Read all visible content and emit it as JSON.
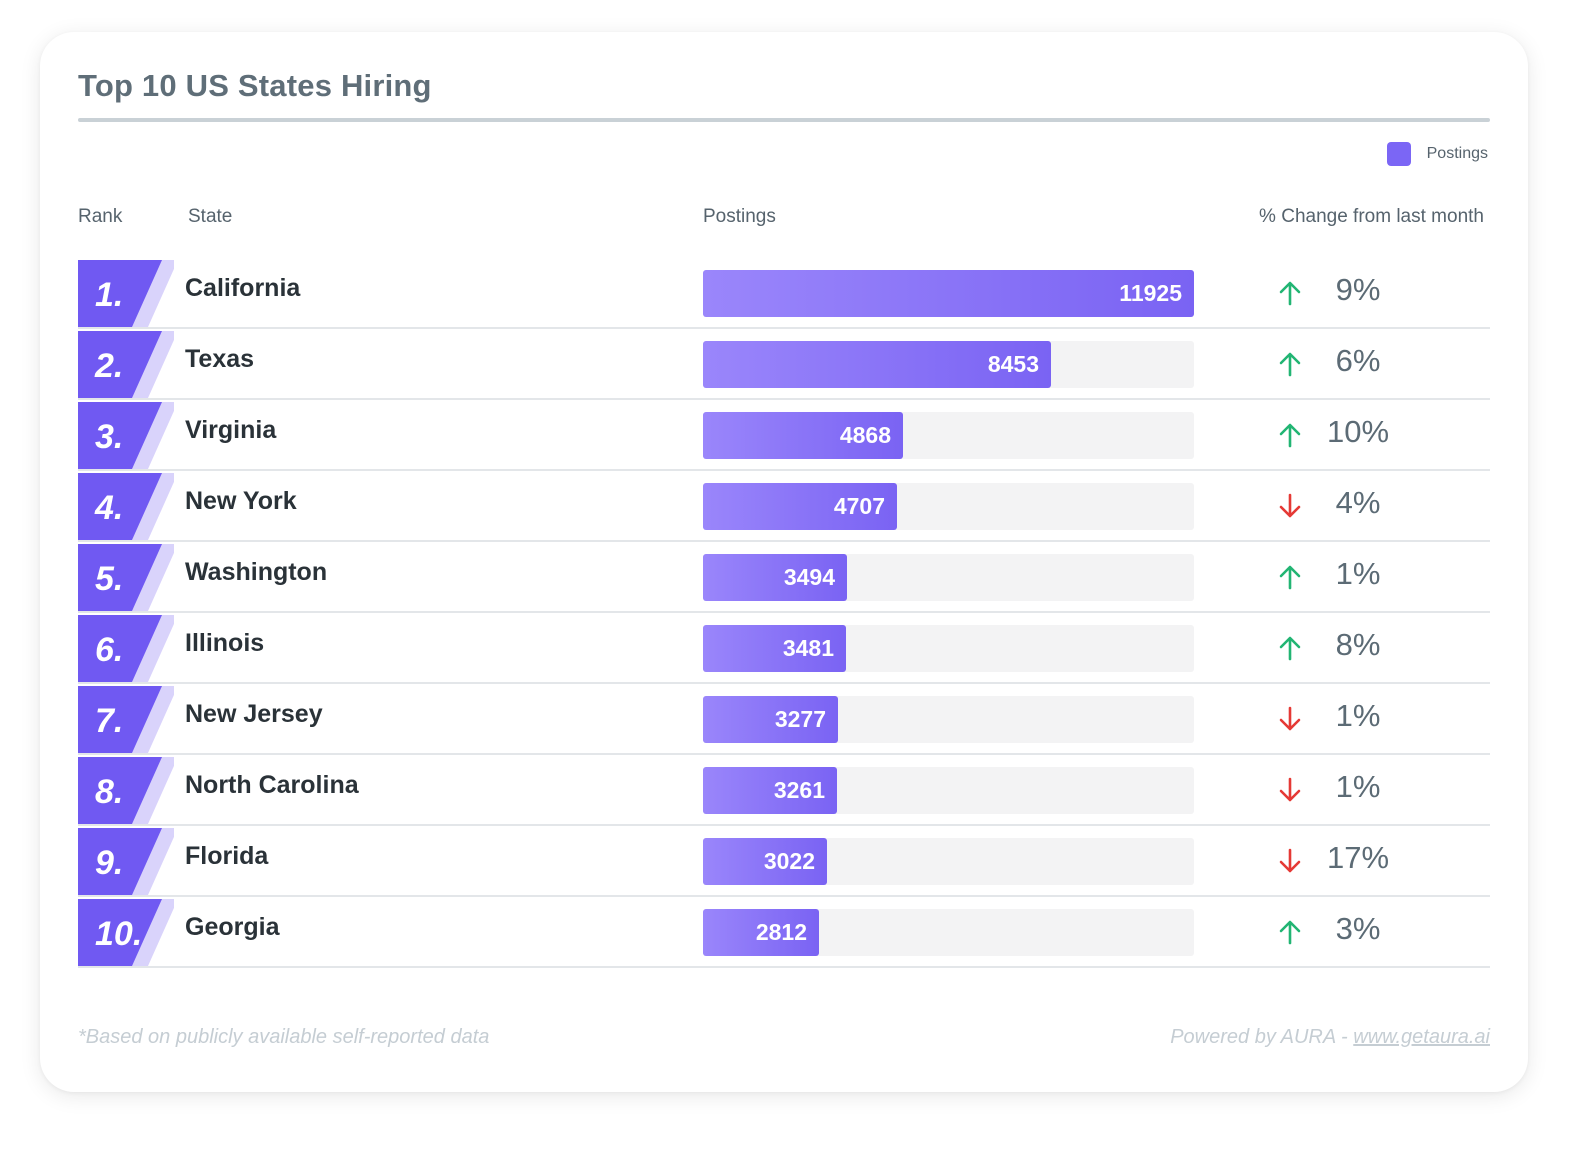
{
  "title": "Top 10 US States Hiring",
  "legend": {
    "label": "Postings",
    "color": "#7b66f5"
  },
  "columns": {
    "rank": "Rank",
    "state": "State",
    "postings": "Postings",
    "change": "% Change from last month"
  },
  "colors": {
    "up": "#22b573",
    "down": "#e53935",
    "bar": "#7b66f5",
    "rank": "#7059f2"
  },
  "chart_data": {
    "type": "bar",
    "orientation": "horizontal",
    "title": "Top 10 US States Hiring",
    "series": [
      {
        "name": "Postings"
      }
    ],
    "xlim": [
      0,
      11925
    ],
    "legend": "top-right",
    "rows": [
      {
        "rank": "1.",
        "state": "California",
        "postings": 11925,
        "direction": "up",
        "change": "9%"
      },
      {
        "rank": "2.",
        "state": "Texas",
        "postings": 8453,
        "direction": "up",
        "change": "6%"
      },
      {
        "rank": "3.",
        "state": "Virginia",
        "postings": 4868,
        "direction": "up",
        "change": "10%"
      },
      {
        "rank": "4.",
        "state": "New York",
        "postings": 4707,
        "direction": "down",
        "change": "4%"
      },
      {
        "rank": "5.",
        "state": "Washington",
        "postings": 3494,
        "direction": "up",
        "change": "1%"
      },
      {
        "rank": "6.",
        "state": "Illinois",
        "postings": 3481,
        "direction": "up",
        "change": "8%"
      },
      {
        "rank": "7.",
        "state": "New Jersey",
        "postings": 3277,
        "direction": "down",
        "change": "1%"
      },
      {
        "rank": "8.",
        "state": "North Carolina",
        "postings": 3261,
        "direction": "down",
        "change": "1%"
      },
      {
        "rank": "9.",
        "state": "Florida",
        "postings": 3022,
        "direction": "down",
        "change": "17%"
      },
      {
        "rank": "10.",
        "state": "Georgia",
        "postings": 2812,
        "direction": "up",
        "change": "3%"
      }
    ]
  },
  "footer": {
    "note": "*Based on publicly available self-reported data",
    "powered_prefix": "Powered by AURA - ",
    "powered_link": "www.getaura.ai"
  }
}
